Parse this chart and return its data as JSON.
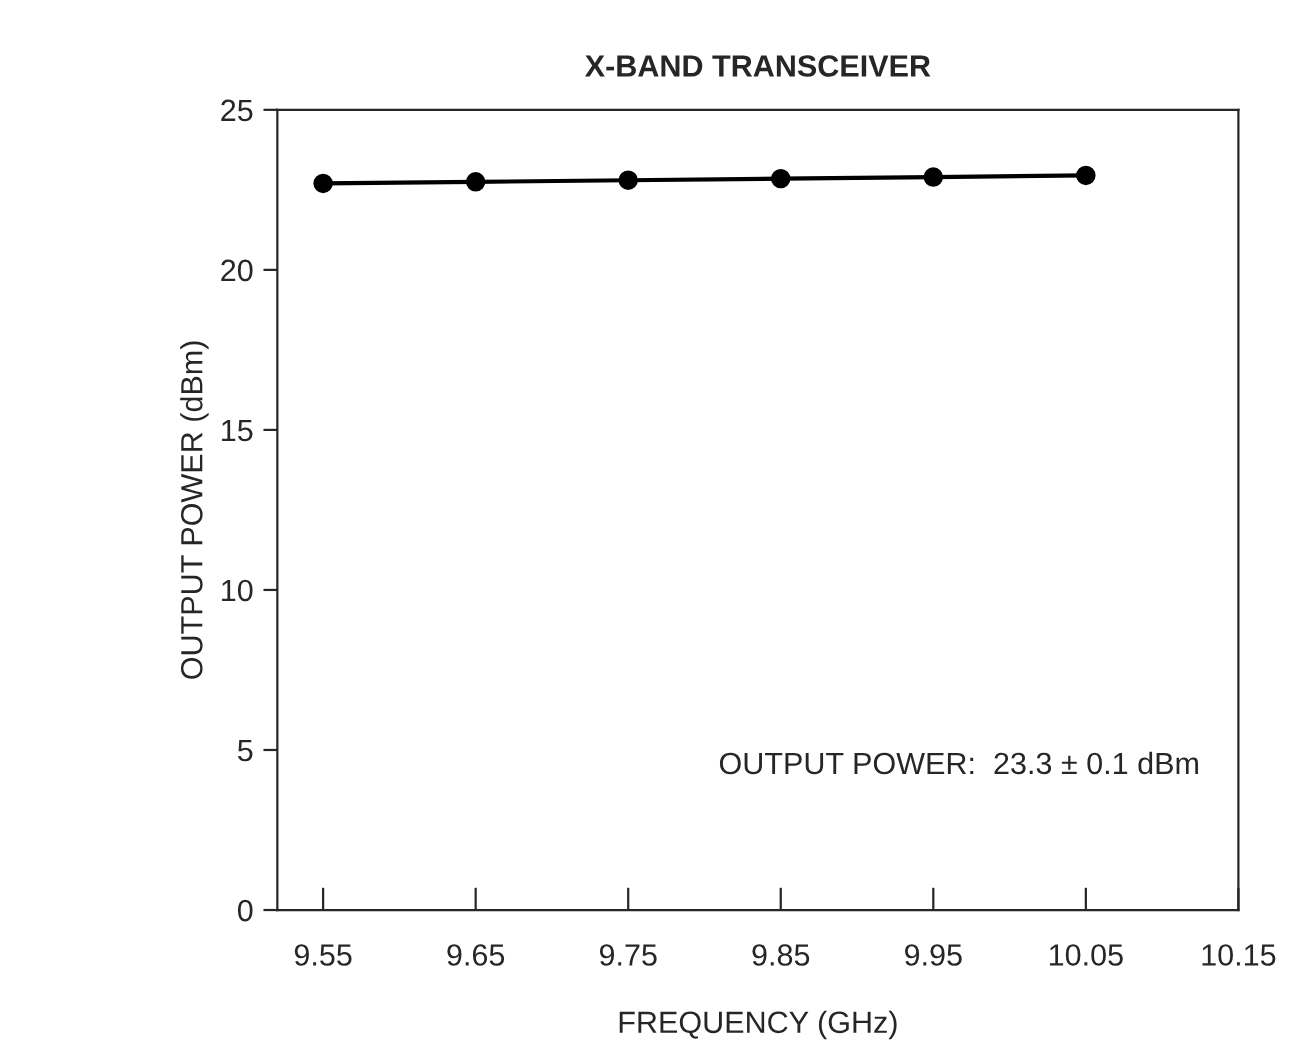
{
  "chart_data": {
    "type": "line",
    "title": "X-BAND TRANSCEIVER",
    "xlabel": "FREQUENCY (GHz)",
    "ylabel": "OUTPUT POWER (dBm)",
    "x": [
      9.55,
      9.65,
      9.75,
      9.85,
      9.95,
      10.05
    ],
    "series": [
      {
        "color": "#000000",
        "values": [
          22.7,
          22.75,
          22.8,
          22.85,
          22.9,
          22.95
        ]
      }
    ],
    "xlim": [
      9.52,
      10.15
    ],
    "xticks": [
      9.55,
      9.65,
      9.75,
      9.85,
      9.95,
      10.05,
      10.15
    ],
    "ylim": [
      0,
      25
    ],
    "yticks": [
      0,
      5,
      10,
      15,
      20,
      25
    ],
    "marker": "circle",
    "line_style": "solid",
    "grid": false,
    "legend": false,
    "annotations": [
      "OUTPUT POWER:  23.3 ± 0.1 dBm"
    ]
  }
}
